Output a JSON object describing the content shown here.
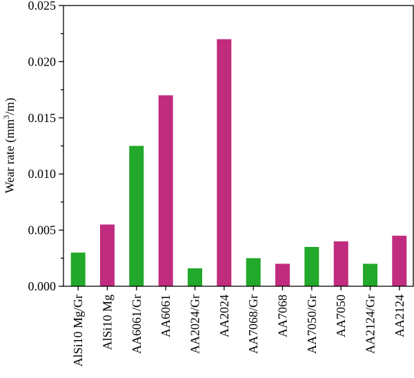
{
  "chart_data": {
    "type": "bar",
    "title": "",
    "xlabel": "",
    "ylabel_prefix": "Wear rate (mm",
    "ylabel_sup": "3",
    "ylabel_suffix": "/m)",
    "ylim": [
      0,
      0.025
    ],
    "yticks": [
      "0.000",
      "0.005",
      "0.010",
      "0.015",
      "0.020",
      "0.025"
    ],
    "grid": false,
    "legend": "none",
    "categories": [
      "AlSi10 Mg/Gr",
      "AlSi10 Mg",
      "AA6061/Gr",
      "AA6061",
      "AA2024/Gr",
      "AA2024",
      "AA7068/Gr",
      "AA7068",
      "AA7050/Gr",
      "AA7050",
      "AA2124/Gr",
      "AA2124"
    ],
    "values": [
      0.003,
      0.0055,
      0.0125,
      0.017,
      0.0016,
      0.022,
      0.0025,
      0.002,
      0.0035,
      0.004,
      0.002,
      0.0045
    ],
    "bar_colors": [
      "#22a82a",
      "#c12c7f",
      "#22a82a",
      "#c12c7f",
      "#22a82a",
      "#c12c7f",
      "#22a82a",
      "#c12c7f",
      "#22a82a",
      "#c12c7f",
      "#22a82a",
      "#c12c7f"
    ]
  }
}
